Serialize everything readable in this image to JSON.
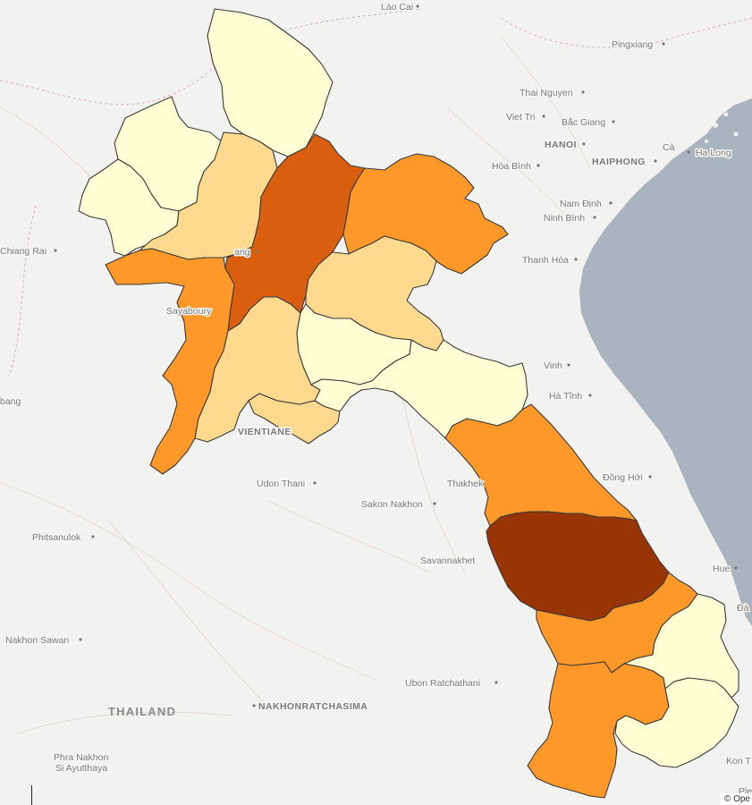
{
  "map": {
    "attribution": "© Ope",
    "colors": {
      "water": "#aab4bf",
      "land": "#f2f2f0",
      "provincial_border": "#3a3a3a",
      "scale_1": "#ffffd4",
      "scale_2": "#fed98e",
      "scale_3": "#fe9929",
      "scale_4": "#d95f0e",
      "scale_5": "#993404"
    },
    "country_labels": {
      "thailand": "THAILAND"
    },
    "place_labels": {
      "lao_cai": "Lào Cai",
      "pingxiang": "Pingxiang",
      "thai_nguyen": "Thai Nguyen",
      "viet_tri": "Viet Tri",
      "bac_giang": "Bắc Giang",
      "hanoi": "HANOI",
      "hoa_binh": "Hòa Bình",
      "haiphong": "HAIPHONG",
      "ca": "Cà",
      "ha_long": "Ha Long",
      "nam_dinh": "Nam Định",
      "ninh_binh": "Ninh Bình",
      "thanh_hoa": "Thanh Hóa",
      "chiang_rai": "Chiang Rai",
      "sayaboury": "Sayaboury",
      "vinh": "Vinh",
      "ha_tinh": "Hà Tĩnh",
      "bang": "bang",
      "vientiane": "VIENTIANE",
      "dong_hoi": "Đồng Hới",
      "udon_thani": "Udon Thani",
      "thakhek": "Thakhek",
      "sakon_nakhon": "Sakon Nakhon",
      "phitsanulok": "Phitsanulok",
      "savannakhet": "Savannakhet",
      "hue": "Hue",
      "da": "Đà",
      "nakhon_sawan": "Nakhon Sawan",
      "ubon_ratchathani": "Ubon Ratchathani",
      "nakhonratchasima": "NAKHONRATCHASIMA",
      "phra_nakhon": "Phra Nakhon",
      "si_ayutthaya": "Si Ayutthaya",
      "kon_tum": "Kon T",
      "plei": "Plei",
      "luang": "ang"
    }
  }
}
